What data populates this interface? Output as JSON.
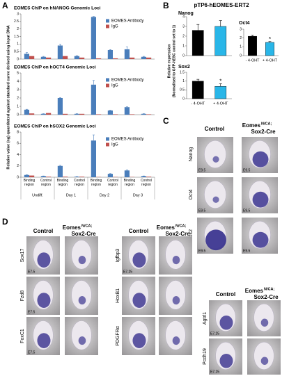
{
  "panel_labels": [
    "A",
    "B",
    "C",
    "D"
  ],
  "chart_data": [
    {
      "type": "bar",
      "title": "EOMES ChIP on hNANOG Genomic Loci",
      "ylabel": "Relative value (ng) quantitated against standard curve derived using input DNA",
      "categories": [
        null,
        null,
        null,
        null,
        null,
        null,
        null,
        null
      ],
      "series": [
        {
          "name": "EOMES Antibody",
          "color": "#4a7ebb",
          "values": [
            0.35,
            0.15,
            0.9,
            0.2,
            2.8,
            0.6,
            0.65,
            0.15
          ],
          "errors": [
            0.08,
            0.03,
            0.08,
            0.03,
            0.03,
            0.03,
            0.15,
            0.03
          ]
        },
        {
          "name": "IgG",
          "color": "#c0504d",
          "values": [
            0.2,
            0.1,
            0.2,
            0.1,
            0.05,
            0.05,
            0.1,
            0.1
          ]
        }
      ],
      "ylim": [
        0,
        3
      ],
      "yticks": [
        0,
        0.5,
        1,
        1.5,
        2,
        2.5,
        3
      ]
    },
    {
      "type": "bar",
      "title": "EOMES ChIP on hOCT4 Genomic Loci",
      "categories": [
        null,
        null,
        null,
        null,
        null,
        null,
        null,
        null
      ],
      "series": [
        {
          "name": "EOMES Antibody",
          "color": "#4a7ebb",
          "values": [
            0.6,
            0.1,
            2.0,
            0.1,
            3.6,
            0.5,
            0.9,
            0.1
          ],
          "errors": [
            0.05,
            0.03,
            0.05,
            0.03,
            0.5,
            0.03,
            0.05,
            0.03
          ]
        },
        {
          "name": "IgG",
          "color": "#c0504d",
          "values": [
            0.15,
            0.2,
            0.1,
            0.1,
            0.05,
            0.05,
            0.05,
            0.05
          ]
        }
      ],
      "ylim": [
        0,
        5
      ],
      "yticks": [
        0,
        1,
        2,
        3,
        4,
        5
      ]
    },
    {
      "type": "bar",
      "title": "EOMES ChIP on hSOX2 Genomic Loci",
      "categories": [
        "Binding region",
        "Control region",
        "Binding region",
        "Control region",
        "Binding region",
        "Control region",
        "Binding region",
        "Control region"
      ],
      "groups": [
        "Undiff.",
        "Day 1",
        "Day 2",
        "Day 3"
      ],
      "series": [
        {
          "name": "EOMES Antibody",
          "color": "#4a7ebb",
          "values": [
            0.4,
            0.2,
            2.0,
            0.1,
            6.5,
            0.6,
            1.2,
            0.2
          ],
          "errors": [
            0.05,
            0.03,
            0.1,
            0.03,
            1.0,
            0.05,
            0.1,
            0.03
          ]
        },
        {
          "name": "IgG",
          "color": "#c0504d",
          "values": [
            0.3,
            0.1,
            0.1,
            0.1,
            0.05,
            0.05,
            0.05,
            0.1
          ]
        }
      ],
      "ylim": [
        0,
        8
      ],
      "yticks": [
        0,
        2,
        4,
        6,
        8
      ]
    },
    {
      "type": "bar",
      "title": "Nanog",
      "categories": [
        null,
        null
      ],
      "values": [
        2.6,
        3.0
      ],
      "errors": [
        0.6,
        0.6
      ],
      "colors": [
        "#000000",
        "#29b6e8"
      ],
      "value_annotations": [
        null,
        null
      ],
      "ylim": [
        0,
        4
      ],
      "yticks": [
        0,
        1,
        2,
        3,
        4
      ]
    },
    {
      "type": "bar",
      "title": "Oct4",
      "categories": [
        "- 4-OHT",
        "+ 4-OHT"
      ],
      "values": [
        2.2,
        1.5
      ],
      "errors": [
        0.1,
        0.1
      ],
      "colors": [
        "#000000",
        "#29b6e8"
      ],
      "value_annotations": [
        null,
        "*"
      ],
      "ylim": [
        0,
        3
      ],
      "yticks": [
        0,
        1,
        2,
        3
      ]
    },
    {
      "type": "bar",
      "title": "Sox2",
      "categories": [
        "- 4-OHT",
        "+ 4-OHT"
      ],
      "values": [
        1.0,
        0.7
      ],
      "errors": [
        0.1,
        0.15
      ],
      "colors": [
        "#000000",
        "#29b6e8"
      ],
      "value_annotations": [
        null,
        "*"
      ],
      "ylim": [
        0,
        1.5
      ],
      "yticks": [
        0,
        0.5,
        1,
        1.5
      ]
    }
  ],
  "panel_b": {
    "title": "pTP6-hEOMES-ERT2",
    "ylabel": [
      "Relative expression",
      "(Normalised to GFP-hESC control set to 1)"
    ]
  },
  "genotypes": {
    "control": "Control",
    "mutant_gene": "Eomes",
    "mutant_allele": "N/CA;",
    "mutant_driver": "Sox2-Cre"
  },
  "panel_c": {
    "rows": [
      "Nanog",
      "Oct4",
      "Sox2"
    ],
    "stage": "E9.5"
  },
  "panel_d": {
    "groups": [
      {
        "rows": [
          "Sox17",
          "Fzd8",
          "FoxC1"
        ],
        "stage": "E7.5"
      },
      {
        "rows": [
          "Igfbp3",
          "HoxB1",
          "PDGFRα"
        ],
        "stage": "E7.25"
      },
      {
        "rows": [
          "Agtrl1",
          "Pcdh19"
        ],
        "stage": "E7.25"
      }
    ]
  }
}
